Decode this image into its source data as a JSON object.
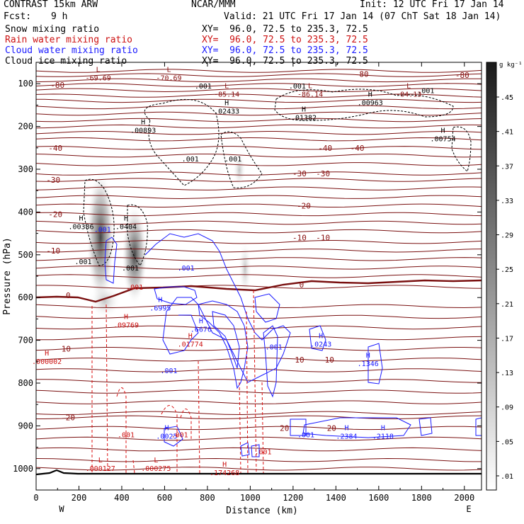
{
  "header": {
    "model": "CONTRAST 15km ARW",
    "org": "NCAR/MMM",
    "init": "Init: 12 UTC Fri 17 Jan 14",
    "fcst_label": "Fcst:",
    "fcst_value": "9 h",
    "valid": "Valid: 21 UTC Fri 17 Jan 14 (07 ChT Sat 18 Jan 14)"
  },
  "fields": [
    {
      "name": "Snow mixing ratio",
      "xy": "XY=  96.0, 72.5 to 235.3, 72.5",
      "color": "#000000"
    },
    {
      "name": "Rain water mixing ratio",
      "xy": "XY=  96.0, 72.5 to 235.3, 72.5",
      "color": "#cc1111"
    },
    {
      "name": "Cloud water mixing ratio",
      "xy": "XY=  96.0, 72.5 to 235.3, 72.5",
      "color": "#1a1aff"
    },
    {
      "name": "Cloud ice mixing ratio",
      "xy": "XY=  96.0, 72.5 to 235.3, 72.5",
      "color": "#000000"
    }
  ],
  "chart_data": {
    "type": "contour",
    "xlabel": "Distance (km)",
    "ylabel": "Pressure (hPa)",
    "x_ticks": [
      0,
      200,
      400,
      600,
      800,
      1000,
      1200,
      1400,
      1600,
      1800,
      2000
    ],
    "y_ticks": [
      100,
      200,
      300,
      400,
      500,
      600,
      700,
      800,
      900,
      1000
    ],
    "xlim": [
      0,
      2080
    ],
    "ylim": [
      50,
      1050
    ],
    "west_label": "W",
    "east_label": "E",
    "colorbar": {
      "unit": "g kg⁻¹",
      "ticks": [
        ".45",
        ".41",
        ".37",
        ".33",
        ".29",
        ".25",
        ".21",
        ".17",
        ".13",
        ".09",
        ".05",
        ".01"
      ]
    },
    "temperature_contours": [
      {
        "label": "-80",
        "x": 100,
        "p": 103
      },
      {
        "label": "-80",
        "x": 1520,
        "p": 77
      },
      {
        "label": "-80",
        "x": 1990,
        "p": 80
      },
      {
        "label": "-40",
        "x": 90,
        "p": 250
      },
      {
        "label": "-40",
        "x": 1350,
        "p": 250
      },
      {
        "label": "-40",
        "x": 1500,
        "p": 250
      },
      {
        "label": "-30",
        "x": 80,
        "p": 325
      },
      {
        "label": "-30",
        "x": 1230,
        "p": 310
      },
      {
        "label": "-30",
        "x": 1340,
        "p": 310
      },
      {
        "label": "-20",
        "x": 90,
        "p": 405
      },
      {
        "label": "-20",
        "x": 1250,
        "p": 385
      },
      {
        "label": "-10",
        "x": 80,
        "p": 490
      },
      {
        "label": "-10",
        "x": 1230,
        "p": 460
      },
      {
        "label": "-10",
        "x": 1340,
        "p": 460
      },
      {
        "label": "0",
        "x": 150,
        "p": 595
      },
      {
        "label": "0",
        "x": 1240,
        "p": 570
      },
      {
        "label": "10",
        "x": 140,
        "p": 720
      },
      {
        "label": "10",
        "x": 1230,
        "p": 745
      },
      {
        "label": "10",
        "x": 1370,
        "p": 745
      },
      {
        "label": "20",
        "x": 160,
        "p": 880
      },
      {
        "label": "20",
        "x": 1160,
        "p": 905
      },
      {
        "label": "20",
        "x": 1380,
        "p": 905
      }
    ],
    "extrema_labels": [
      {
        "tag": "L",
        "value": "-69.69",
        "x": 290,
        "p": 77,
        "field": "temperature"
      },
      {
        "tag": "L",
        "value": "-70.69",
        "x": 620,
        "p": 77,
        "field": "temperature"
      },
      {
        "tag": "L",
        "value": "-85.14",
        "x": 890,
        "p": 115,
        "field": "temperature"
      },
      {
        "tag": "L",
        "value": "-86.14",
        "x": 1280,
        "p": 115,
        "field": "temperature"
      },
      {
        "tag": "L",
        "value": "-84.13",
        "x": 1740,
        "p": 115,
        "field": "temperature"
      },
      {
        "tag": "H",
        "value": ".02433",
        "x": 890,
        "p": 155,
        "field": "ice"
      },
      {
        "tag": "H",
        "value": ".01382",
        "x": 1250,
        "p": 170,
        "field": "ice"
      },
      {
        "tag": "H",
        "value": ".00963",
        "x": 1560,
        "p": 135,
        "field": "ice"
      },
      {
        "tag": "H",
        "value": ".00893",
        "x": 500,
        "p": 200,
        "field": "ice"
      },
      {
        "tag": "H",
        "value": ".00754",
        "x": 1900,
        "p": 220,
        "field": "ice"
      },
      {
        "tag": "H",
        "value": ".00386",
        "x": 210,
        "p": 425,
        "field": "ice"
      },
      {
        "tag": "H",
        "value": ".0404",
        "x": 420,
        "p": 425,
        "field": "ice"
      },
      {
        "tag": "H",
        "value": ".6995",
        "x": 580,
        "p": 615,
        "field": "cloud"
      },
      {
        "tag": "H",
        "value": ".6676",
        "x": 770,
        "p": 665,
        "field": "cloud"
      },
      {
        "tag": "H",
        "value": ".0243",
        "x": 1330,
        "p": 700,
        "field": "cloud"
      },
      {
        "tag": "H",
        "value": ".1346",
        "x": 1550,
        "p": 745,
        "field": "cloud"
      },
      {
        "tag": "H",
        "value": ".0025",
        "x": 610,
        "p": 915,
        "field": "cloud"
      },
      {
        "tag": "H",
        "value": ".2384",
        "x": 1450,
        "p": 915,
        "field": "cloud"
      },
      {
        "tag": "H",
        "value": ".2118",
        "x": 1620,
        "p": 915,
        "field": "cloud"
      },
      {
        "tag": "H",
        "value": ".09769",
        "x": 420,
        "p": 655,
        "field": "rain"
      },
      {
        "tag": "H",
        "value": ".01774",
        "x": 720,
        "p": 700,
        "field": "rain"
      },
      {
        "tag": "H",
        "value": ".000002",
        "x": 50,
        "p": 740,
        "field": "rain"
      },
      {
        "tag": "L",
        "value": ".000127",
        "x": 300,
        "p": 990,
        "field": "rain"
      },
      {
        "tag": "L",
        "value": ".000275",
        "x": 560,
        "p": 990,
        "field": "rain"
      },
      {
        "tag": "H",
        "value": ".174268",
        "x": 880,
        "p": 1000,
        "field": "rain"
      }
    ],
    "contour_labels": [
      {
        "value": ".001",
        "x": 780,
        "p": 105,
        "field": "ice"
      },
      {
        "value": ".001",
        "x": 1220,
        "p": 105,
        "field": "ice"
      },
      {
        "value": ".001",
        "x": 1820,
        "p": 115,
        "field": "ice"
      },
      {
        "value": ".001",
        "x": 720,
        "p": 275,
        "field": "ice"
      },
      {
        "value": ".001",
        "x": 920,
        "p": 275,
        "field": "ice"
      },
      {
        "value": ".001",
        "x": 220,
        "p": 515,
        "field": "ice"
      },
      {
        "value": ".001",
        "x": 440,
        "p": 530,
        "field": "ice"
      },
      {
        "value": ".001",
        "x": 310,
        "p": 440,
        "field": "cloud"
      },
      {
        "value": ".001",
        "x": 700,
        "p": 530,
        "field": "cloud"
      },
      {
        "value": ".001",
        "x": 620,
        "p": 770,
        "field": "cloud"
      },
      {
        "value": ".001",
        "x": 1110,
        "p": 715,
        "field": "cloud"
      },
      {
        "value": ".001",
        "x": 1260,
        "p": 920,
        "field": "cloud"
      },
      {
        "value": ".001",
        "x": 670,
        "p": 920,
        "field": "rain"
      },
      {
        "value": ".001",
        "x": 420,
        "p": 920,
        "field": "rain"
      },
      {
        "value": ".001",
        "x": 1060,
        "p": 960,
        "field": "rain"
      },
      {
        "value": ".001",
        "x": 460,
        "p": 575,
        "field": "rain"
      }
    ]
  }
}
